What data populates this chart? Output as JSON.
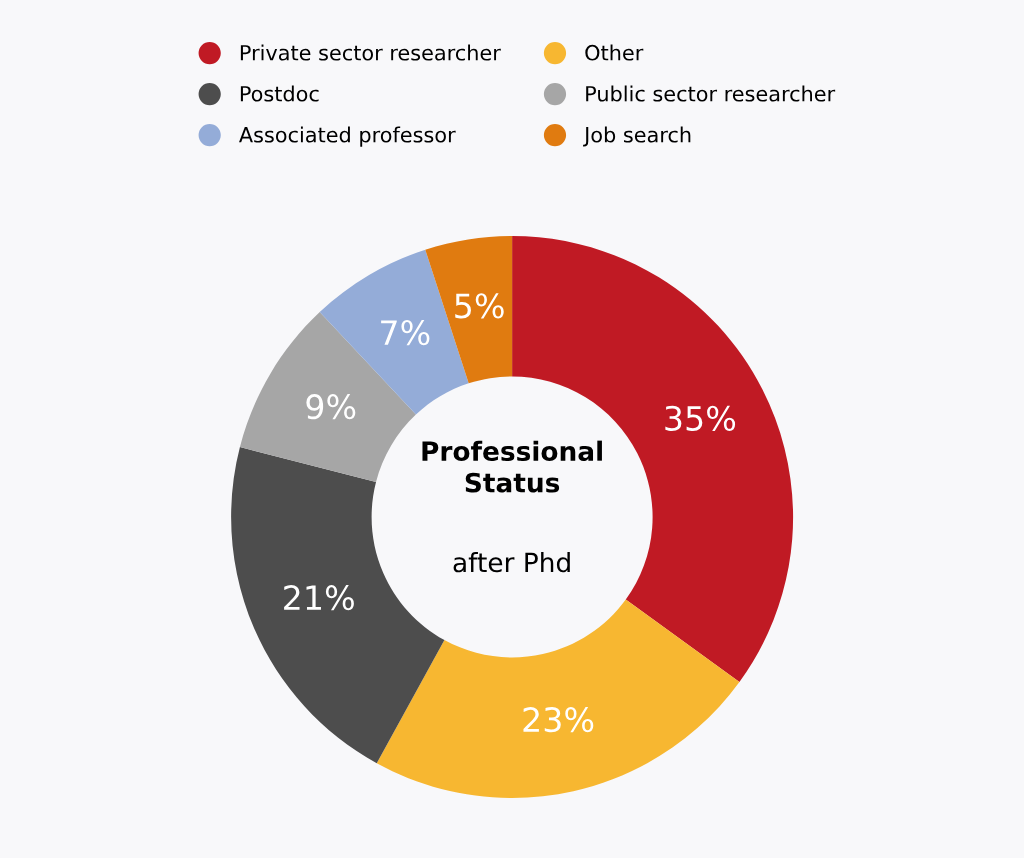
{
  "chart_data": {
    "type": "donut",
    "title": "Professional Status",
    "subtitle": "after Phd",
    "categories": [
      "Private sector researcher",
      "Other",
      "Postdoc",
      "Public sector researcher",
      "Associated professor",
      "Job search"
    ],
    "values": [
      35,
      23,
      21,
      9,
      7,
      5
    ],
    "colors": [
      "#c01a24",
      "#f7b731",
      "#4d4d4d",
      "#a6a6a6",
      "#94acd8",
      "#e07b10"
    ],
    "value_labels": [
      "35%",
      "23%",
      "21%",
      "9%",
      "7%",
      "5%"
    ],
    "legend": "top"
  }
}
